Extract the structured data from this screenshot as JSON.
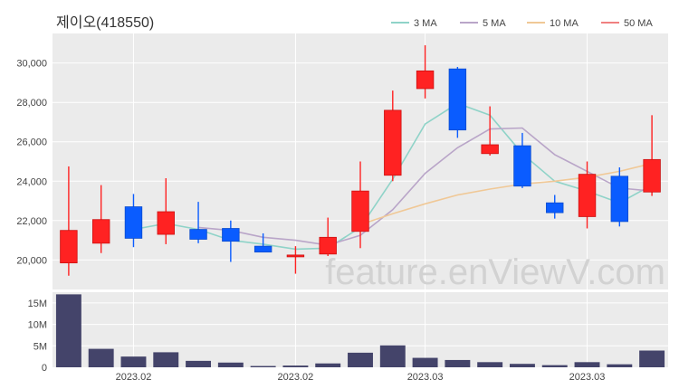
{
  "title": "제이오(418550)",
  "watermark": "feature.enViewV.com",
  "legend": [
    {
      "label": "3 MA",
      "color": "#8fd3c8"
    },
    {
      "label": "5 MA",
      "color": "#b9a5c8"
    },
    {
      "label": "10 MA",
      "color": "#f0c896"
    },
    {
      "label": "50 MA",
      "color": "#f08080"
    }
  ],
  "colors": {
    "up": "#ff2222",
    "down": "#0a5cff",
    "volume": "#44446a",
    "panel": "#ebebeb",
    "grid": "#ffffff"
  },
  "chart_data": {
    "type": "candlestick",
    "price_axis": {
      "ticks": [
        20000,
        22000,
        24000,
        26000,
        28000,
        30000
      ],
      "tick_labels": [
        "20,000",
        "22,000",
        "24,000",
        "26,000",
        "28,000",
        "30,000"
      ],
      "ylim": [
        18500,
        31500
      ]
    },
    "volume_axis": {
      "ticks": [
        0,
        5000000,
        10000000,
        15000000
      ],
      "tick_labels": [
        "0",
        "5M",
        "10M",
        "15M"
      ],
      "ylim": [
        0,
        17500000
      ]
    },
    "x_tick_labels": [
      {
        "index": 2,
        "label": "2023.02"
      },
      {
        "index": 7,
        "label": "2023.02"
      },
      {
        "index": 11,
        "label": "2023.03"
      },
      {
        "index": 16,
        "label": "2023.03"
      }
    ],
    "candles": [
      {
        "open": 19850,
        "high": 24750,
        "low": 19200,
        "close": 21500
      },
      {
        "open": 20850,
        "high": 23800,
        "low": 20350,
        "close": 22050
      },
      {
        "open": 22700,
        "high": 23350,
        "low": 20650,
        "close": 21100
      },
      {
        "open": 21300,
        "high": 24150,
        "low": 20800,
        "close": 22450
      },
      {
        "open": 21550,
        "high": 22950,
        "low": 20850,
        "close": 21050
      },
      {
        "open": 21600,
        "high": 22000,
        "low": 19900,
        "close": 20950
      },
      {
        "open": 20700,
        "high": 21350,
        "low": 20400,
        "close": 20400
      },
      {
        "open": 20200,
        "high": 20700,
        "low": 19300,
        "close": 20250
      },
      {
        "open": 20300,
        "high": 22150,
        "low": 20200,
        "close": 21150
      },
      {
        "open": 21450,
        "high": 25000,
        "low": 20600,
        "close": 23500
      },
      {
        "open": 24300,
        "high": 28600,
        "low": 24000,
        "close": 27600
      },
      {
        "open": 28700,
        "high": 30900,
        "low": 28200,
        "close": 29600
      },
      {
        "open": 29700,
        "high": 29800,
        "low": 26200,
        "close": 26600
      },
      {
        "open": 25400,
        "high": 27800,
        "low": 25300,
        "close": 25850
      },
      {
        "open": 25800,
        "high": 26450,
        "low": 23650,
        "close": 23750
      },
      {
        "open": 22900,
        "high": 23300,
        "low": 22100,
        "close": 22400
      },
      {
        "open": 22200,
        "high": 25000,
        "low": 21600,
        "close": 24350
      },
      {
        "open": 24250,
        "high": 24700,
        "low": 21700,
        "close": 21950
      },
      {
        "open": 23450,
        "high": 27350,
        "low": 23250,
        "close": 25100
      }
    ],
    "ma3": [
      null,
      null,
      21550,
      21850,
      21550,
      21000,
      20800,
      20550,
      20600,
      21650,
      24100,
      26900,
      27950,
      27350,
      25400,
      24000,
      23500,
      22900,
      23800
    ],
    "ma5": [
      null,
      null,
      null,
      null,
      21650,
      21500,
      21150,
      21000,
      20750,
      21250,
      22550,
      24400,
      25700,
      26650,
      26700,
      25350,
      24500,
      23650,
      23500
    ],
    "ma10": [
      null,
      null,
      null,
      null,
      null,
      null,
      null,
      null,
      null,
      21800,
      22350,
      22850,
      23300,
      23600,
      23850,
      24000,
      24200,
      24500,
      24900
    ],
    "ma50": [],
    "volume": [
      17000000,
      4300000,
      2500000,
      3500000,
      1500000,
      1100000,
      300000,
      400000,
      900000,
      3400000,
      5100000,
      2200000,
      1700000,
      1200000,
      800000,
      500000,
      1200000,
      700000,
      3900000
    ]
  }
}
